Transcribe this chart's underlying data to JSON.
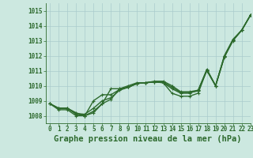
{
  "xlabel": "Graphe pression niveau de la mer (hPa)",
  "ylim": [
    1007.5,
    1015.5
  ],
  "xlim": [
    -0.5,
    23
  ],
  "yticks": [
    1008,
    1009,
    1010,
    1011,
    1012,
    1013,
    1014,
    1015
  ],
  "xticks": [
    0,
    1,
    2,
    3,
    4,
    5,
    6,
    7,
    8,
    9,
    10,
    11,
    12,
    13,
    14,
    15,
    16,
    17,
    18,
    19,
    20,
    21,
    22,
    23
  ],
  "bg_color": "#cce8e0",
  "grid_color": "#aacccc",
  "line_color": "#2d6a2d",
  "series": [
    [
      1008.8,
      1008.5,
      1008.5,
      1008.2,
      1008.0,
      1008.2,
      1008.8,
      1009.1,
      1009.8,
      1010.0,
      1010.2,
      1010.2,
      1010.3,
      1010.3,
      1010.0,
      1009.6,
      1009.6,
      1009.7,
      1011.1,
      1010.0,
      1012.0,
      1013.1,
      1013.7,
      1014.7
    ],
    [
      1008.8,
      1008.5,
      1008.5,
      1008.15,
      1008.1,
      1008.5,
      1009.0,
      1009.2,
      1009.7,
      1009.9,
      1010.15,
      1010.2,
      1010.25,
      1010.25,
      1009.9,
      1009.55,
      1009.55,
      1009.65,
      1011.05,
      1010.0,
      1011.95,
      1013.05,
      1013.7,
      1014.7
    ],
    [
      1008.8,
      1008.5,
      1008.5,
      1008.1,
      1008.0,
      1009.0,
      1009.4,
      1009.4,
      1009.75,
      1009.9,
      1010.15,
      1010.2,
      1010.25,
      1010.2,
      1009.5,
      1009.3,
      1009.3,
      1009.5,
      1011.05,
      1010.0,
      1011.9,
      1013.05,
      1013.7,
      1014.7
    ],
    [
      1008.8,
      1008.4,
      1008.4,
      1008.0,
      1008.0,
      1008.3,
      1008.8,
      1009.8,
      1009.8,
      1009.9,
      1010.15,
      1010.2,
      1010.25,
      1010.2,
      1009.8,
      1009.5,
      1009.5,
      1009.7,
      1011.0,
      1010.0,
      1011.9,
      1013.0,
      1013.7,
      1014.7
    ]
  ],
  "marker_series": [
    0,
    1,
    2,
    3
  ],
  "marker_size": 2.8,
  "linewidth": 1.0,
  "tick_fontsize": 5.5,
  "label_fontsize": 7.5
}
